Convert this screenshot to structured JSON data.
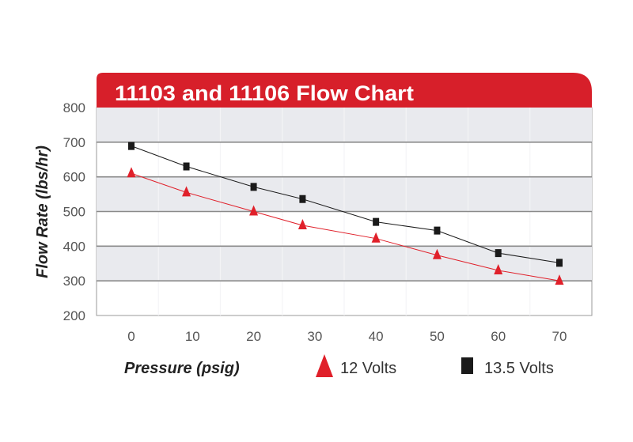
{
  "chart_data": {
    "type": "line",
    "title": "11103 and 11106 Flow Chart",
    "xlabel": "Pressure (psig)",
    "ylabel": "Flow Rate (lbs/hr)",
    "xlim": [
      0,
      70
    ],
    "ylim": [
      200,
      800
    ],
    "x_ticks": [
      0,
      10,
      20,
      30,
      40,
      50,
      60,
      70
    ],
    "y_ticks": [
      200,
      300,
      400,
      500,
      600,
      700,
      800
    ],
    "grid": true,
    "legend_placement": "bottom",
    "series": [
      {
        "name": "12 Volts",
        "marker": "triangle",
        "color": "#e0202a",
        "x": [
          0,
          9,
          20,
          28,
          40,
          50,
          60,
          70
        ],
        "y": [
          610,
          555,
          500,
          460,
          422,
          374,
          330,
          300
        ]
      },
      {
        "name": "13.5 Volts",
        "marker": "square",
        "color": "#1a1a1a",
        "x": [
          0,
          9,
          20,
          28,
          40,
          50,
          60,
          70
        ],
        "y": [
          689,
          630,
          571,
          536,
          470,
          445,
          380,
          352
        ]
      }
    ],
    "colors": {
      "title_bar": "#d71f2a",
      "band": "#e9eaee",
      "gridline": "#8a8a8a"
    }
  }
}
